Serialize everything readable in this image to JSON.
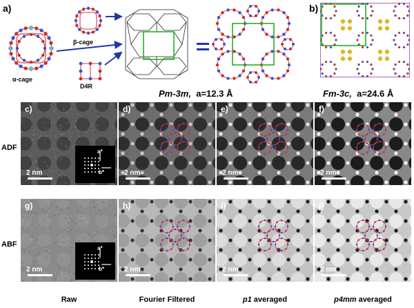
{
  "panel_letters": {
    "a": "a)",
    "b": "b)",
    "c": "c)",
    "d": "d)",
    "e": "e)",
    "f": "f)",
    "g": "g)",
    "h": "h)",
    "i": "i)",
    "j": "j)"
  },
  "cages": {
    "alpha": "α-cage",
    "beta": "β-cage",
    "d4r": "D4R"
  },
  "structure_a": {
    "space_group": "Pm-3m,",
    "lattice": "a=12.3 Å"
  },
  "structure_b": {
    "space_group": "Fm-3c,",
    "lattice": "a=24.6 Å"
  },
  "row_labels": {
    "adf": "ADF",
    "abf": "ABF"
  },
  "column_labels": {
    "raw": "Raw",
    "fourier": "Fourier Filtered",
    "p1": "p1",
    "p1_rest": " averaged",
    "p4mm": "p4mm",
    "p4mm_rest": " averaged"
  },
  "scale_bar": "2 nm",
  "fft_axes": {
    "a": "a*",
    "b": "b*"
  },
  "colors": {
    "oxygen": "#cc2b2b",
    "tetrahedral": "#3b4fd0",
    "cation": "#70b8c8",
    "sodium": "#d9b82a",
    "cell_green": "#22b022",
    "cell_purple": "#8a3a9a"
  }
}
